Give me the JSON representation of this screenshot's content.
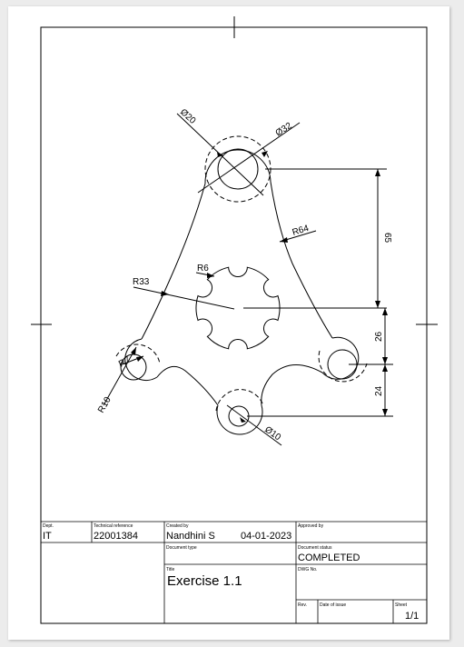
{
  "dimensions": {
    "d_top_large": "Ø32",
    "d_top_small": "Ø20",
    "r_arc": "R64",
    "v_65": "65",
    "r_outer": "R33",
    "r_notch": "R6",
    "v_26": "26",
    "v_24": "24",
    "r_left_outer": "R10",
    "r_left_inner": "R7",
    "d_bottom": "Ø10"
  },
  "title_block": {
    "dept_label": "Dept.",
    "dept_value": "IT",
    "tech_ref_label": "Technical reference",
    "tech_ref_value": "22001384",
    "created_by_label": "Created by",
    "created_by_value": "Nandhini S",
    "created_date": "04-01-2023",
    "approved_by_label": "Approved by",
    "approved_by_value": "",
    "doc_type_label": "Document type",
    "doc_type_value": "",
    "doc_status_label": "Document status",
    "doc_status_value": "COMPLETED",
    "title_label": "Title",
    "title_value": "Exercise 1.1",
    "dwg_no_label": "DWG No.",
    "dwg_no_value": "",
    "rev_label": "Rev.",
    "date_issue_label": "Date of issue",
    "sheet_label": "Sheet",
    "sheet_value": "1/1"
  }
}
